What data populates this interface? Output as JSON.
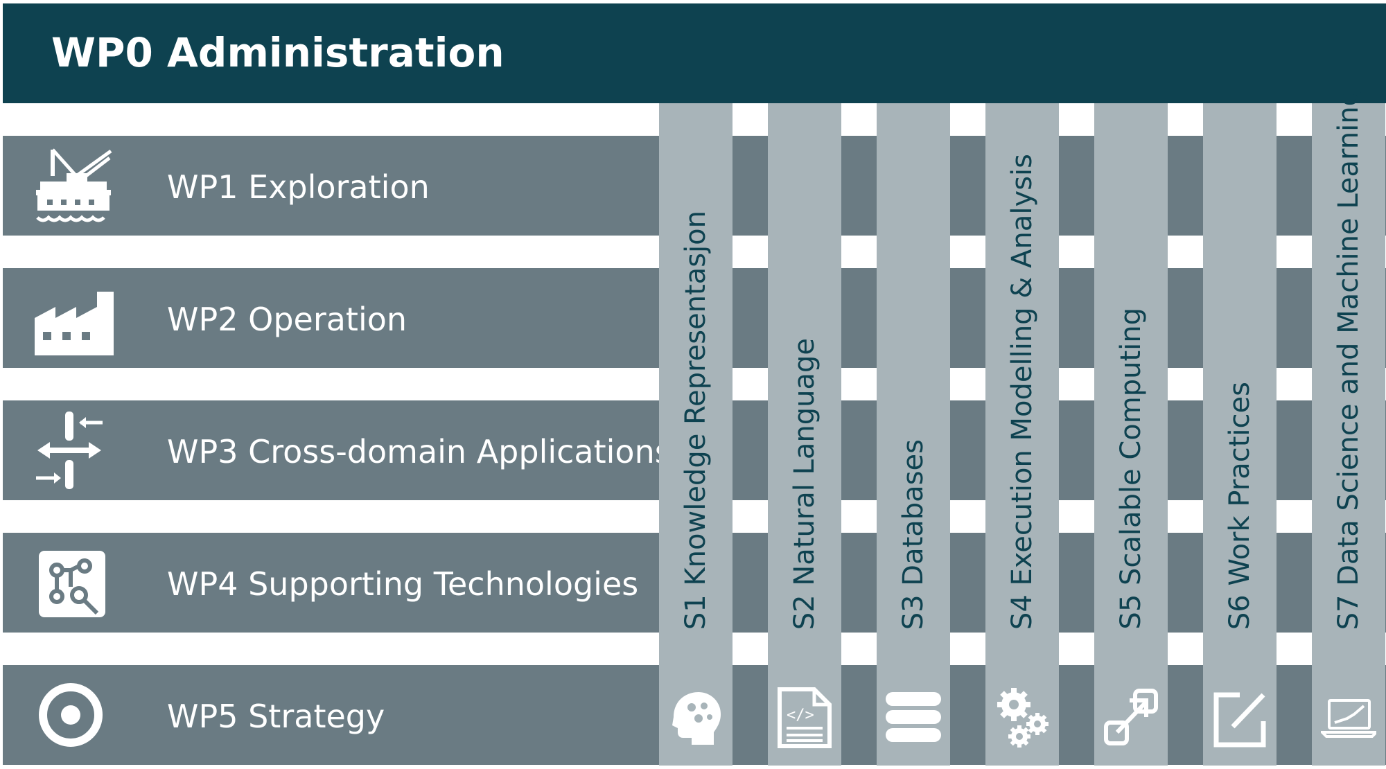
{
  "header": {
    "title": "WP0 Administration"
  },
  "work_packages": [
    {
      "label": "WP1 Exploration",
      "icon": "offshore-rig-icon"
    },
    {
      "label": "WP2 Operation",
      "icon": "factory-icon"
    },
    {
      "label": "WP3 Cross-domain Applications",
      "icon": "cross-arrows-icon"
    },
    {
      "label": "WP4 Supporting Technologies",
      "icon": "circuit-search-icon"
    },
    {
      "label": "WP5 Strategy",
      "icon": "target-icon"
    }
  ],
  "subjects": [
    {
      "label": "S1 Knowledge Representasjon",
      "icon": "brain-gears-icon"
    },
    {
      "label": "S2 Natural Language",
      "icon": "code-document-icon"
    },
    {
      "label": "S3 Databases",
      "icon": "database-icon"
    },
    {
      "label": "S4 Execution Modelling & Analysis",
      "icon": "gears-icon"
    },
    {
      "label": "S5 Scalable Computing",
      "icon": "expand-arrow-icon"
    },
    {
      "label": "S6 Work Practices",
      "icon": "edit-square-icon"
    },
    {
      "label": "S7 Data Science and Machine Learning",
      "icon": "laptop-chart-icon"
    }
  ],
  "colors": {
    "header": "#0e4250",
    "row": "#6a7b83",
    "column": "#a8b4b9",
    "column_text": "#0e4250",
    "white": "#ffffff"
  }
}
